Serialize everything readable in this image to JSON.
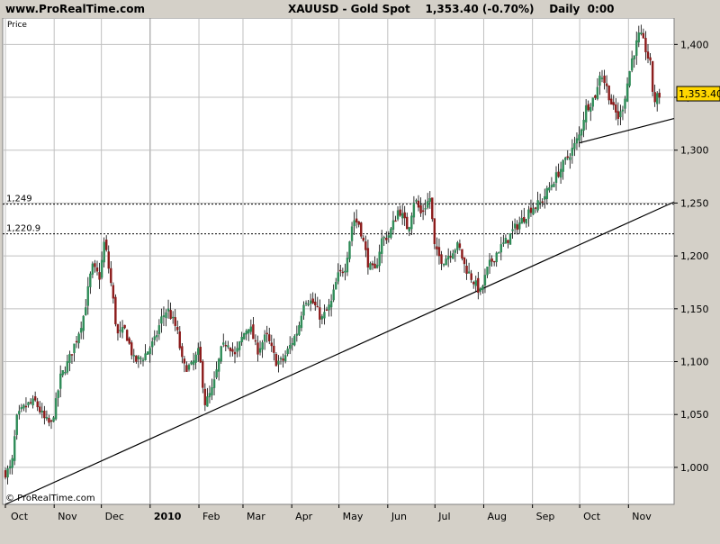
{
  "header": {
    "site": "www.ProRealTime.com",
    "title": "XAUUSD - Gold Spot",
    "last": "1,353.40 (-0.70%)",
    "period": "Daily  0:00"
  },
  "panel_label": "Price",
  "watermark": "© ProRealTime.com",
  "colors": {
    "up": "#2e8b57",
    "down": "#8b1a1a",
    "grid": "#c0c0c0",
    "price_tag": "#ffd700",
    "background": "#ffffff",
    "frame": "#d4d0c8"
  },
  "chart_data": {
    "type": "candlestick",
    "title": "XAUUSD - Gold Spot",
    "xlabel": "",
    "ylabel": "Price",
    "x_ticks": [
      "Oct",
      "Nov",
      "Dec",
      "2010",
      "Feb",
      "Mar",
      "Apr",
      "May",
      "Jun",
      "Jul",
      "Aug",
      "Sep",
      "Oct",
      "Nov"
    ],
    "y_ticks": [
      "1,000",
      "1,050",
      "1,100",
      "1,150",
      "1,200",
      "1,250",
      "1,300",
      "1,350",
      "1,400"
    ],
    "ylim": [
      965,
      1425
    ],
    "last_price": "1,353.40",
    "horizontal_levels": [
      {
        "label": "1,249",
        "value": 1249
      },
      {
        "label": "1,220.9",
        "value": 1220.9
      }
    ],
    "trendlines": [
      {
        "from": [
          "2009-10-01",
          965
        ],
        "to": [
          "2010-11-30",
          1251
        ]
      },
      {
        "from": [
          "2010-10-01",
          1307
        ],
        "to": [
          "2010-11-30",
          1330
        ]
      }
    ],
    "close_path": [
      [
        "2009-10-01",
        995
      ],
      [
        "2009-10-05",
        1000
      ],
      [
        "2009-10-08",
        1045
      ],
      [
        "2009-10-12",
        1055
      ],
      [
        "2009-10-16",
        1060
      ],
      [
        "2009-10-20",
        1062
      ],
      [
        "2009-10-26",
        1045
      ],
      [
        "2009-10-30",
        1040
      ],
      [
        "2009-11-02",
        1060
      ],
      [
        "2009-11-05",
        1085
      ],
      [
        "2009-11-10",
        1100
      ],
      [
        "2009-11-16",
        1125
      ],
      [
        "2009-11-20",
        1145
      ],
      [
        "2009-11-25",
        1190
      ],
      [
        "2009-11-30",
        1180
      ],
      [
        "2009-12-03",
        1215
      ],
      [
        "2009-12-08",
        1165
      ],
      [
        "2009-12-11",
        1125
      ],
      [
        "2009-12-16",
        1130
      ],
      [
        "2009-12-22",
        1100
      ],
      [
        "2009-12-28",
        1105
      ],
      [
        "2010-01-04",
        1120
      ],
      [
        "2010-01-08",
        1140
      ],
      [
        "2010-01-12",
        1150
      ],
      [
        "2010-01-18",
        1130
      ],
      [
        "2010-01-22",
        1095
      ],
      [
        "2010-01-27",
        1095
      ],
      [
        "2010-02-01",
        1110
      ],
      [
        "2010-02-05",
        1060
      ],
      [
        "2010-02-10",
        1075
      ],
      [
        "2010-02-15",
        1110
      ],
      [
        "2010-02-19",
        1120
      ],
      [
        "2010-02-24",
        1105
      ],
      [
        "2010-03-01",
        1125
      ],
      [
        "2010-03-05",
        1135
      ],
      [
        "2010-03-10",
        1110
      ],
      [
        "2010-03-16",
        1125
      ],
      [
        "2010-03-22",
        1100
      ],
      [
        "2010-03-26",
        1100
      ],
      [
        "2010-03-31",
        1115
      ],
      [
        "2010-04-05",
        1130
      ],
      [
        "2010-04-09",
        1160
      ],
      [
        "2010-04-15",
        1155
      ],
      [
        "2010-04-20",
        1140
      ],
      [
        "2010-04-26",
        1155
      ],
      [
        "2010-04-30",
        1180
      ],
      [
        "2010-05-05",
        1190
      ],
      [
        "2010-05-10",
        1235
      ],
      [
        "2010-05-14",
        1230
      ],
      [
        "2010-05-20",
        1190
      ],
      [
        "2010-05-24",
        1185
      ],
      [
        "2010-05-28",
        1215
      ],
      [
        "2010-06-02",
        1220
      ],
      [
        "2010-06-08",
        1245
      ],
      [
        "2010-06-14",
        1225
      ],
      [
        "2010-06-18",
        1255
      ],
      [
        "2010-06-22",
        1240
      ],
      [
        "2010-06-28",
        1255
      ],
      [
        "2010-07-01",
        1205
      ],
      [
        "2010-07-06",
        1195
      ],
      [
        "2010-07-12",
        1205
      ],
      [
        "2010-07-16",
        1210
      ],
      [
        "2010-07-20",
        1190
      ],
      [
        "2010-07-26",
        1175
      ],
      [
        "2010-07-30",
        1165
      ],
      [
        "2010-08-04",
        1190
      ],
      [
        "2010-08-10",
        1205
      ],
      [
        "2010-08-16",
        1215
      ],
      [
        "2010-08-20",
        1225
      ],
      [
        "2010-08-26",
        1235
      ],
      [
        "2010-08-31",
        1245
      ],
      [
        "2010-09-06",
        1250
      ],
      [
        "2010-09-10",
        1260
      ],
      [
        "2010-09-16",
        1275
      ],
      [
        "2010-09-22",
        1290
      ],
      [
        "2010-09-28",
        1305
      ],
      [
        "2010-10-01",
        1315
      ],
      [
        "2010-10-05",
        1340
      ],
      [
        "2010-10-08",
        1345
      ],
      [
        "2010-10-12",
        1355
      ],
      [
        "2010-10-14",
        1375
      ],
      [
        "2010-10-18",
        1360
      ],
      [
        "2010-10-22",
        1340
      ],
      [
        "2010-10-26",
        1330
      ],
      [
        "2010-10-29",
        1345
      ],
      [
        "2010-11-03",
        1385
      ],
      [
        "2010-11-08",
        1410
      ],
      [
        "2010-11-11",
        1400
      ],
      [
        "2010-11-15",
        1380
      ],
      [
        "2010-11-17",
        1345
      ],
      [
        "2010-11-19",
        1350
      ],
      [
        "2010-11-22",
        1353.4
      ]
    ]
  }
}
